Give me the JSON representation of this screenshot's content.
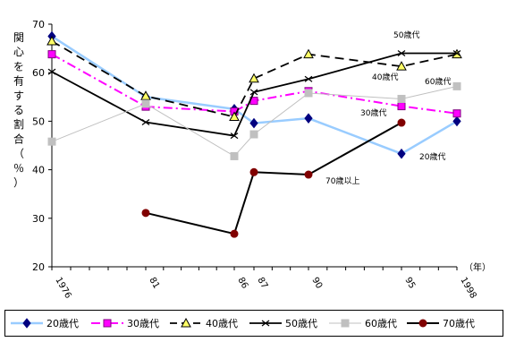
{
  "chart_data": {
    "type": "line",
    "ylabel": "関心を有する割合（％）",
    "xlabel": "",
    "x_unit": "（年）",
    "ylim": [
      20,
      70
    ],
    "y_ticks": [
      "20",
      "30",
      "40",
      "50",
      "60",
      "70"
    ],
    "x_values": [
      1976,
      1981,
      1986,
      1987,
      1990,
      1995,
      1998
    ],
    "x_tick_labels": [
      "1976",
      "81",
      "86",
      "87",
      "90",
      "95",
      "1998"
    ],
    "grid": false,
    "legend_position": "bottom",
    "series": [
      {
        "name": "20歳代",
        "color": "#99ccff",
        "marker": "diamond",
        "points": [
          [
            1976,
            67.5
          ],
          [
            1981,
            55.0
          ],
          [
            1986,
            52.5
          ],
          [
            1987,
            49.6
          ],
          [
            1990,
            50.6
          ],
          [
            1995,
            43.3
          ],
          [
            1998,
            50.0
          ]
        ]
      },
      {
        "name": "30歳代",
        "color": "#ff00ff",
        "marker": "square",
        "points": [
          [
            1976,
            63.8
          ],
          [
            1981,
            53.0
          ],
          [
            1986,
            52.0
          ],
          [
            1987,
            54.2
          ],
          [
            1990,
            56.2
          ],
          [
            1995,
            53.1
          ],
          [
            1998,
            51.6
          ]
        ]
      },
      {
        "name": "40歳代",
        "color": "#000000",
        "marker": "triangle",
        "points": [
          [
            1976,
            66.5
          ],
          [
            1981,
            55.2
          ],
          [
            1986,
            50.9
          ],
          [
            1987,
            58.8
          ],
          [
            1990,
            63.8
          ],
          [
            1995,
            61.3
          ],
          [
            1998,
            63.8
          ]
        ]
      },
      {
        "name": "50歳代",
        "color": "#000000",
        "marker": "x",
        "points": [
          [
            1976,
            60.2
          ],
          [
            1981,
            49.8
          ],
          [
            1986,
            47.0
          ],
          [
            1987,
            56.0
          ],
          [
            1990,
            58.7
          ],
          [
            1995,
            64.0
          ],
          [
            1998,
            64.0
          ]
        ]
      },
      {
        "name": "60歳代",
        "color": "#c0c0c0",
        "marker": "square",
        "points": [
          [
            1976,
            45.8
          ],
          [
            1981,
            53.6
          ],
          [
            1986,
            42.8
          ],
          [
            1987,
            47.3
          ],
          [
            1990,
            55.8
          ],
          [
            1995,
            54.6
          ],
          [
            1998,
            57.2
          ]
        ]
      },
      {
        "name": "70歳以上",
        "color": "#800000",
        "marker": "circle",
        "points": [
          [
            1981,
            31.1
          ],
          [
            1986,
            26.8
          ],
          [
            1987,
            39.5
          ],
          [
            1990,
            39.0
          ],
          [
            1995,
            49.7
          ]
        ]
      }
    ],
    "annotations": [
      "50歳代",
      "40歳代",
      "60歳代",
      "30歳代",
      "20歳代",
      "70歳以上"
    ],
    "legend_labels": [
      "20歳代",
      "30歳代",
      "40歳代",
      "50歳代",
      "60歳代",
      "70歳代"
    ]
  }
}
